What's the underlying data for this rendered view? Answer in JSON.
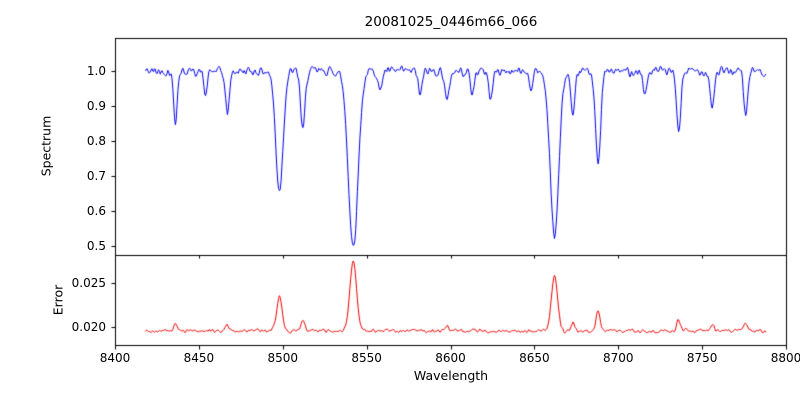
{
  "chart_data": [
    {
      "type": "line",
      "panel": "spectrum",
      "title": "20081025_0446m66_066",
      "xlabel": "Wavelength",
      "ylabel": "Spectrum",
      "color": "#0000ee",
      "grid": false,
      "legend": null,
      "xlim": [
        8400,
        8800
      ],
      "ylim": [
        0.475,
        1.095
      ],
      "xticks": [
        8400,
        8450,
        8500,
        8550,
        8600,
        8650,
        8700,
        8750,
        8800
      ],
      "xticklabels": [
        "8400",
        "8450",
        "8500",
        "8550",
        "8600",
        "8650",
        "8700",
        "8750",
        "8800"
      ],
      "yticks": [
        0.5,
        0.6,
        0.7,
        0.8,
        0.9,
        1.0
      ],
      "yticklabels": [
        "0.5",
        "0.6",
        "0.7",
        "0.8",
        "0.9",
        "1.0"
      ],
      "x_start": 8418,
      "x_end": 8788,
      "continuum": 1.0,
      "noise_amplitude": 0.018,
      "absorption_lines": [
        {
          "center": 8436,
          "depth": 0.14,
          "width": 1.1
        },
        {
          "center": 8454,
          "depth": 0.07,
          "width": 1.0
        },
        {
          "center": 8467,
          "depth": 0.12,
          "width": 1.2
        },
        {
          "center": 8498,
          "depth": 0.34,
          "width": 2.2
        },
        {
          "center": 8512,
          "depth": 0.17,
          "width": 1.3
        },
        {
          "center": 8542,
          "depth": 0.5,
          "width": 2.9
        },
        {
          "center": 8558,
          "depth": 0.06,
          "width": 1.0
        },
        {
          "center": 8582,
          "depth": 0.07,
          "width": 1.1
        },
        {
          "center": 8598,
          "depth": 0.09,
          "width": 1.2
        },
        {
          "center": 8613,
          "depth": 0.07,
          "width": 1.0
        },
        {
          "center": 8624,
          "depth": 0.08,
          "width": 1.1
        },
        {
          "center": 8648,
          "depth": 0.05,
          "width": 1.0
        },
        {
          "center": 8662,
          "depth": 0.47,
          "width": 2.6
        },
        {
          "center": 8673,
          "depth": 0.14,
          "width": 1.2
        },
        {
          "center": 8688,
          "depth": 0.27,
          "width": 1.5
        },
        {
          "center": 8716,
          "depth": 0.07,
          "width": 1.1
        },
        {
          "center": 8736,
          "depth": 0.17,
          "width": 1.3
        },
        {
          "center": 8756,
          "depth": 0.1,
          "width": 1.2
        },
        {
          "center": 8776,
          "depth": 0.13,
          "width": 1.1
        }
      ]
    },
    {
      "type": "line",
      "panel": "error",
      "title": "",
      "xlabel": "Wavelength",
      "ylabel": "Error",
      "color": "#ee0000",
      "grid": false,
      "legend": null,
      "xlim": [
        8400,
        8800
      ],
      "ylim": [
        0.018,
        0.0282
      ],
      "xticks": [
        8400,
        8450,
        8500,
        8550,
        8600,
        8650,
        8700,
        8750,
        8800
      ],
      "xticklabels": [
        "8400",
        "8450",
        "8500",
        "8550",
        "8600",
        "8650",
        "8700",
        "8750",
        "8800"
      ],
      "yticks": [
        0.02,
        0.025
      ],
      "yticklabels": [
        "0.020",
        "0.025"
      ],
      "x_start": 8418,
      "x_end": 8788,
      "baseline": 0.0196,
      "noise_amplitude": 0.00028,
      "peaks": [
        {
          "center": 8436,
          "height": 0.0008,
          "width": 1.0
        },
        {
          "center": 8467,
          "height": 0.0006,
          "width": 1.0
        },
        {
          "center": 8498,
          "height": 0.004,
          "width": 1.6
        },
        {
          "center": 8512,
          "height": 0.0013,
          "width": 1.1
        },
        {
          "center": 8542,
          "height": 0.008,
          "width": 2.0
        },
        {
          "center": 8598,
          "height": 0.0005,
          "width": 1.0
        },
        {
          "center": 8662,
          "height": 0.0062,
          "width": 1.8
        },
        {
          "center": 8673,
          "height": 0.0009,
          "width": 1.0
        },
        {
          "center": 8688,
          "height": 0.0024,
          "width": 1.2
        },
        {
          "center": 8736,
          "height": 0.0012,
          "width": 1.1
        },
        {
          "center": 8756,
          "height": 0.0007,
          "width": 1.0
        },
        {
          "center": 8776,
          "height": 0.001,
          "width": 1.0
        }
      ]
    }
  ]
}
